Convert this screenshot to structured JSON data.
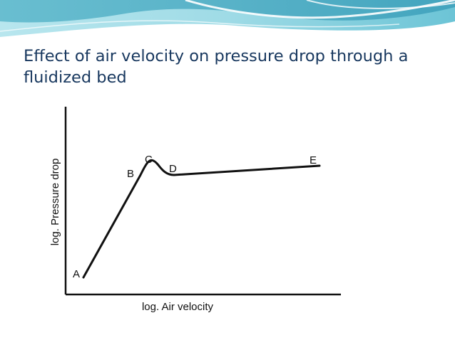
{
  "slide": {
    "title_line1": "Effect of air velocity on pressure drop through a",
    "title_line2": "fluidized bed",
    "colors": {
      "title": "#17375e",
      "banner_dark": "#4aa8c2",
      "banner_light": "#9fdbe6",
      "curve": "#111111"
    }
  },
  "figure": {
    "xlabel": "log. Air velocity",
    "ylabel": "log. Pressure drop",
    "points": {
      "A": "A",
      "B": "B",
      "C": "C",
      "D": "D",
      "E": "E"
    }
  }
}
